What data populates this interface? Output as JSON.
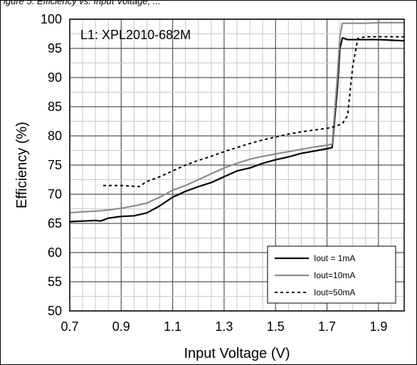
{
  "caption": "igure 5. Efficiency vs. Input Voltage, ...",
  "chart_data": {
    "type": "line",
    "title": "",
    "annotation": "L1: XPL2010-682M",
    "xlabel": "Input Voltage (V)",
    "ylabel": "Efficiency (%)",
    "xlim": [
      0.7,
      2.0
    ],
    "ylim": [
      50,
      100
    ],
    "x_ticks": [
      "0.7",
      "0.9",
      "1.1",
      "1.3",
      "1.5",
      "1.7",
      "1.9"
    ],
    "y_ticks": [
      "50",
      "55",
      "60",
      "65",
      "70",
      "75",
      "80",
      "85",
      "90",
      "95",
      "100"
    ],
    "grid": true,
    "legend_position": "bottom-right",
    "series": [
      {
        "name": "Iout = 1mA",
        "color": "#000000",
        "dash": "solid",
        "x": [
          0.7,
          0.75,
          0.8,
          0.82,
          0.85,
          0.9,
          0.95,
          1.0,
          1.05,
          1.1,
          1.15,
          1.2,
          1.25,
          1.3,
          1.35,
          1.4,
          1.45,
          1.5,
          1.55,
          1.6,
          1.65,
          1.7,
          1.72,
          1.74,
          1.75,
          1.76,
          1.78,
          1.8,
          1.85,
          1.9,
          1.95,
          2.0
        ],
        "y": [
          65.3,
          65.4,
          65.5,
          65.4,
          65.9,
          66.2,
          66.3,
          66.8,
          68.0,
          69.5,
          70.5,
          71.3,
          72.0,
          73.0,
          74.0,
          74.5,
          75.3,
          75.9,
          76.4,
          77.0,
          77.4,
          77.8,
          78.0,
          88.0,
          95.0,
          96.8,
          96.5,
          96.5,
          96.5,
          96.5,
          96.4,
          96.3
        ]
      },
      {
        "name": "Iout=10mA",
        "color": "#8c8c8c",
        "dash": "solid",
        "x": [
          0.7,
          0.75,
          0.8,
          0.85,
          0.9,
          0.95,
          1.0,
          1.05,
          1.1,
          1.15,
          1.2,
          1.25,
          1.3,
          1.35,
          1.4,
          1.45,
          1.5,
          1.55,
          1.6,
          1.65,
          1.7,
          1.72,
          1.74,
          1.75,
          1.76,
          1.78,
          1.8,
          1.85,
          1.9,
          1.95,
          2.0
        ],
        "y": [
          66.8,
          67.0,
          67.1,
          67.3,
          67.6,
          68.0,
          68.5,
          69.5,
          70.7,
          71.5,
          72.5,
          73.5,
          74.5,
          75.3,
          76.0,
          76.5,
          76.9,
          77.3,
          77.7,
          78.1,
          78.4,
          78.6,
          90.0,
          97.0,
          99.3,
          99.3,
          99.3,
          99.3,
          99.4,
          99.4,
          99.4
        ]
      },
      {
        "name": "Iout=50mA",
        "color": "#000000",
        "dash": "dashed",
        "x": [
          0.83,
          0.9,
          0.97,
          1.0,
          1.05,
          1.1,
          1.15,
          1.2,
          1.25,
          1.3,
          1.35,
          1.4,
          1.45,
          1.5,
          1.55,
          1.6,
          1.65,
          1.7,
          1.73,
          1.76,
          1.78,
          1.8,
          1.82,
          1.85,
          1.9,
          1.95,
          2.0
        ],
        "y": [
          71.5,
          71.5,
          71.3,
          72.2,
          73.0,
          74.0,
          75.0,
          75.8,
          76.5,
          77.3,
          78.0,
          78.7,
          79.3,
          79.8,
          80.3,
          80.7,
          81.0,
          81.3,
          81.6,
          82.1,
          83.5,
          92.0,
          96.7,
          97.0,
          97.0,
          97.0,
          97.0
        ]
      }
    ]
  }
}
